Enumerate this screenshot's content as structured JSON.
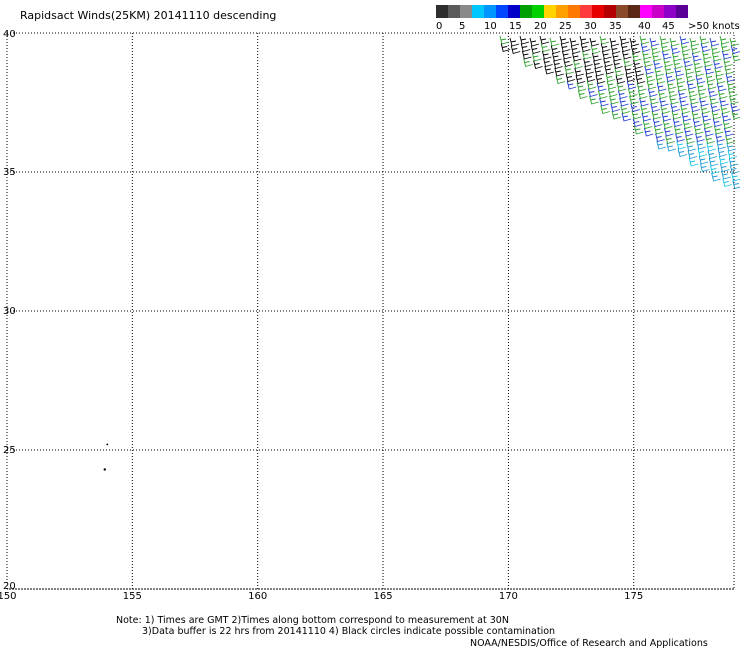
{
  "title": "Rapidsact Winds(25KM) 20141110 descending",
  "legend": {
    "swatches": [
      "#2e2e2e",
      "#5a5a5a",
      "#8a8a8a",
      "#00c8ff",
      "#0096ff",
      "#0046ff",
      "#0000c8",
      "#00a000",
      "#00d200",
      "#ffd200",
      "#ffa000",
      "#ff7800",
      "#ff3c3c",
      "#e60000",
      "#b40000",
      "#8a4a2a",
      "#5a2814",
      "#ff00ff",
      "#c800c8",
      "#8c00c8",
      "#5a0096"
    ],
    "labels": [
      "0",
      "5",
      "10",
      "15",
      "20",
      "25",
      "30",
      "35",
      "40",
      "45",
      ">50 knots"
    ]
  },
  "map": {
    "lon_range": [
      150,
      179
    ],
    "lat_range": [
      20,
      40
    ],
    "lon_ticks": [
      "150",
      "155",
      "160",
      "165",
      "170",
      "175"
    ],
    "lat_ticks": [
      "20",
      "25",
      "30",
      "35",
      "40"
    ],
    "gridlines": "dotted",
    "wind_colors": {
      "calm": "#000000",
      "light": "#2aa02a",
      "moderate": "#1e3cd2",
      "fresh": "#1e9ad2",
      "strong": "#18c8e8"
    }
  },
  "notes": {
    "line1": "Note: 1) Times are GMT 2)Times along bottom correspond to measurement at 30N",
    "line2": "3)Data buffer is 22 hrs from 20141110 4) Black circles indicate possible contamination"
  },
  "credit": "NOAA/NESDIS/Office of Research and Applications"
}
